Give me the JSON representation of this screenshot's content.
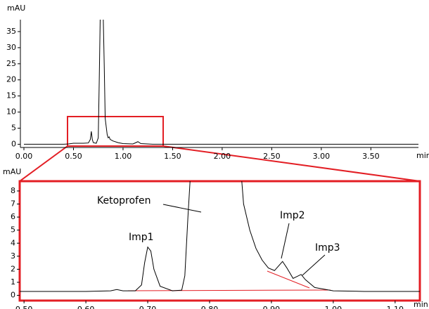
{
  "chart_data": [
    {
      "type": "line",
      "y_label": "mAU",
      "x_label": "min",
      "xlim": [
        0,
        3.98
      ],
      "ylim": [
        -1,
        38.7
      ],
      "xticks": [
        {
          "value": 0,
          "label": "0.00"
        },
        {
          "value": 0.5,
          "label": "0.50"
        },
        {
          "value": 1,
          "label": "1.00"
        },
        {
          "value": 1.5,
          "label": "1.50"
        },
        {
          "value": 2,
          "label": "2.00"
        },
        {
          "value": 2.5,
          "label": "2.50"
        },
        {
          "value": 3,
          "label": "3.00"
        },
        {
          "value": 3.5,
          "label": "3.50"
        }
      ],
      "yticks": [
        0,
        5,
        10,
        15,
        20,
        25,
        30,
        35
      ],
      "x": [
        0,
        0.2,
        0.4,
        0.45,
        0.5,
        0.6,
        0.65,
        0.67,
        0.68,
        0.69,
        0.7,
        0.73,
        0.75,
        0.76,
        0.77,
        0.8,
        0.81,
        0.82,
        0.84,
        0.85,
        0.86,
        0.87,
        0.9,
        0.95,
        1.0,
        1.1,
        1.15,
        1.18,
        1.3,
        2,
        3,
        3.98
      ],
      "series": [
        {
          "color": "#000000",
          "values": [
            0,
            0,
            0,
            0.1,
            0.3,
            0.3,
            0.4,
            1.5,
            4,
            1.5,
            0.5,
            0.3,
            2,
            20,
            40,
            40,
            25,
            8,
            3,
            2,
            2.3,
            1.5,
            1,
            0.5,
            0.2,
            0.1,
            0.8,
            0.2,
            0,
            0,
            0,
            0
          ]
        }
      ]
    },
    {
      "type": "line",
      "y_label": "mAU",
      "x_label": "min",
      "annotations": [
        "Ketoprofen",
        "Imp1",
        "Imp2",
        "Imp3"
      ],
      "xlim": [
        0.493,
        1.14
      ],
      "ylim": [
        -0.4,
        8.75
      ],
      "xticks": [
        {
          "value": 0.5,
          "label": "0.50"
        },
        {
          "value": 0.6,
          "label": "0.60"
        },
        {
          "value": 0.7,
          "label": "0.70"
        },
        {
          "value": 0.8,
          "label": "0.80"
        },
        {
          "value": 0.9,
          "label": "0.90"
        },
        {
          "value": 1.0,
          "label": "1.00"
        },
        {
          "value": 1.1,
          "label": "1.10"
        }
      ],
      "yticks": [
        0,
        1,
        2,
        3,
        4,
        5,
        6,
        7,
        8
      ],
      "x": [
        0.493,
        0.6,
        0.64,
        0.65,
        0.66,
        0.68,
        0.69,
        0.695,
        0.7,
        0.705,
        0.71,
        0.72,
        0.74,
        0.755,
        0.76,
        0.765,
        0.77,
        0.85,
        0.855,
        0.865,
        0.875,
        0.885,
        0.895,
        0.905,
        0.918,
        0.925,
        0.935,
        0.948,
        0.955,
        0.97,
        1.0,
        1.05,
        1.14
      ],
      "series": [
        {
          "color": "#000000",
          "values": [
            0.3,
            0.3,
            0.35,
            0.45,
            0.35,
            0.35,
            0.8,
            2.5,
            3.7,
            3.4,
            2,
            0.7,
            0.35,
            0.4,
            1.5,
            6,
            10,
            10,
            7,
            5,
            3.6,
            2.7,
            2.1,
            1.9,
            2.6,
            2.1,
            1.3,
            1.6,
            1.2,
            0.6,
            0.35,
            0.3,
            0.3
          ]
        }
      ]
    }
  ]
}
